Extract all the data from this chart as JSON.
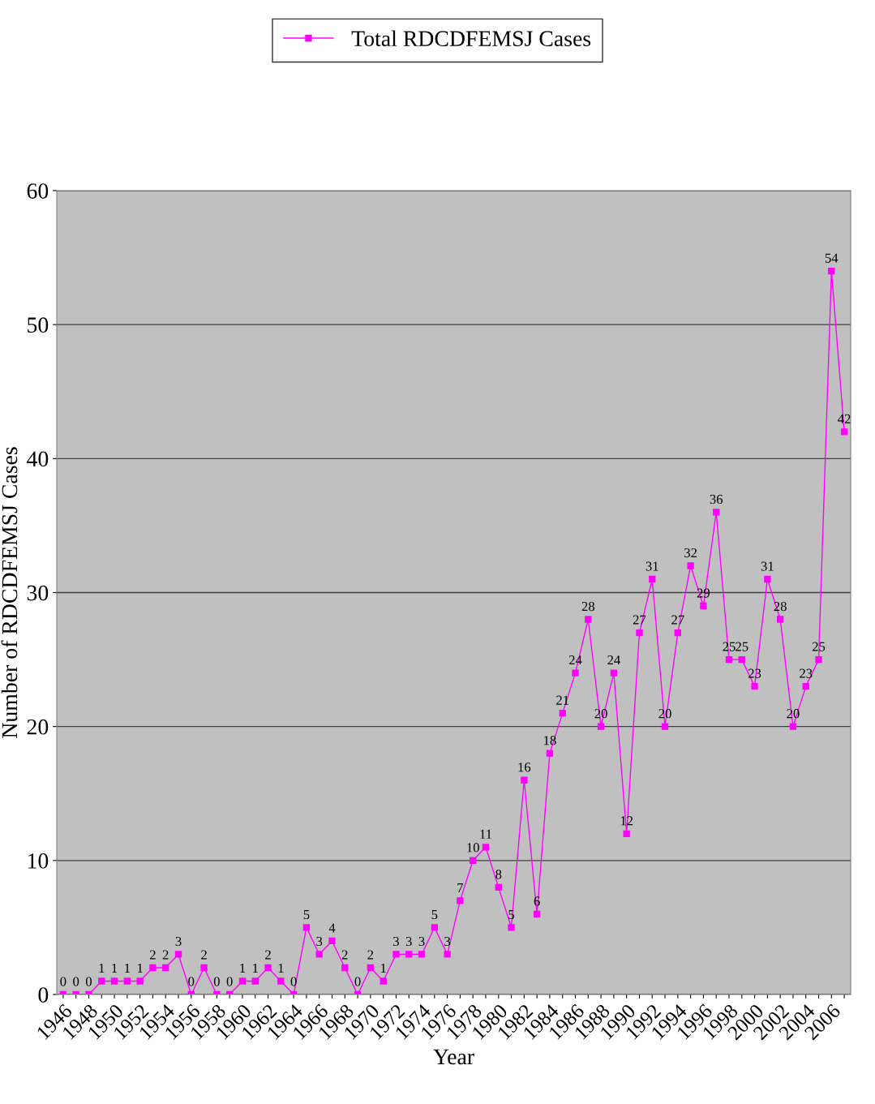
{
  "chart_data": {
    "type": "line",
    "xlabel": "Year",
    "ylabel": "Number of RDCDFEMSJ Cases",
    "categories": [
      "1946",
      null,
      "1948",
      null,
      "1950",
      null,
      "1952",
      null,
      "1954",
      null,
      "1956",
      null,
      "1958",
      null,
      "1960",
      null,
      "1962",
      null,
      "1964",
      null,
      "1966",
      null,
      "1968",
      null,
      "1970",
      null,
      "1972",
      null,
      "1974",
      null,
      "1976",
      null,
      "1978",
      null,
      "1980",
      null,
      "1982",
      null,
      "1984",
      null,
      "1986",
      null,
      "1988",
      null,
      "1990",
      null,
      "1992",
      null,
      "1994",
      null,
      "1996",
      null,
      "1998",
      null,
      "2000",
      null,
      "2002",
      null,
      "2004",
      null,
      "2006",
      null
    ],
    "series": [
      {
        "name": "Total RDCDFEMSJ Cases",
        "color": "#ff00ff",
        "values": [
          0,
          0,
          0,
          1,
          1,
          1,
          1,
          2,
          2,
          3,
          0,
          2,
          0,
          0,
          1,
          1,
          2,
          1,
          0,
          5,
          3,
          4,
          2,
          0,
          2,
          1,
          3,
          3,
          3,
          5,
          3,
          7,
          10,
          11,
          8,
          5,
          16,
          6,
          18,
          21,
          24,
          28,
          20,
          24,
          12,
          27,
          31,
          20,
          27,
          32,
          29,
          36,
          25,
          25,
          23,
          31,
          28,
          20,
          23,
          25,
          54,
          42
        ]
      }
    ],
    "ylim": [
      0,
      60
    ],
    "yticks": [
      0,
      10,
      20,
      30,
      40,
      50,
      60
    ],
    "grid": "y",
    "legend": "top",
    "marker": "square",
    "line_style": "solid",
    "data_labels": true
  }
}
